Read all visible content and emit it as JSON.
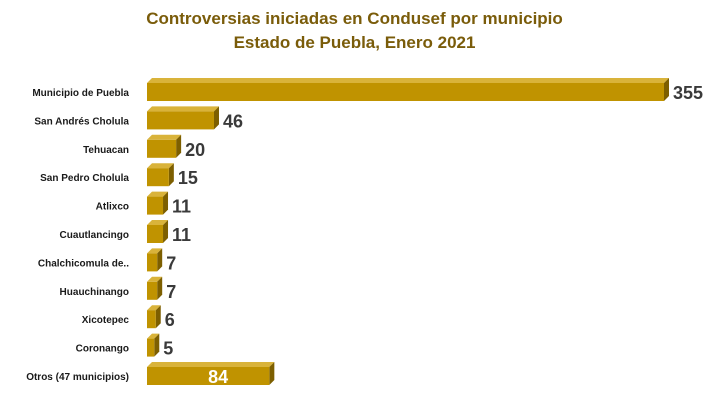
{
  "chart_data": {
    "type": "bar",
    "orientation": "horizontal",
    "title": "Controversias iniciadas en Condusef por municipio",
    "subtitle": "Estado de Puebla, Enero 2021",
    "categories": [
      "Municipio de Puebla",
      "San Andrés Cholula",
      "Tehuacan",
      "San Pedro Cholula",
      "Atlixco",
      "Cuautlancingo",
      "Chalchicomula de..",
      "Huauchinango",
      "Xicotepec",
      "Coronango",
      "Otros (47 municipios)"
    ],
    "values": [
      355,
      46,
      20,
      15,
      11,
      11,
      7,
      7,
      6,
      5,
      84
    ],
    "xlim": [
      0,
      355
    ],
    "grid": false,
    "legend": "none",
    "colors": {
      "bar_front": "#c09300",
      "bar_top": "#d9b33a",
      "bar_side": "#7d5f00",
      "title": "#7a5c0a"
    }
  }
}
